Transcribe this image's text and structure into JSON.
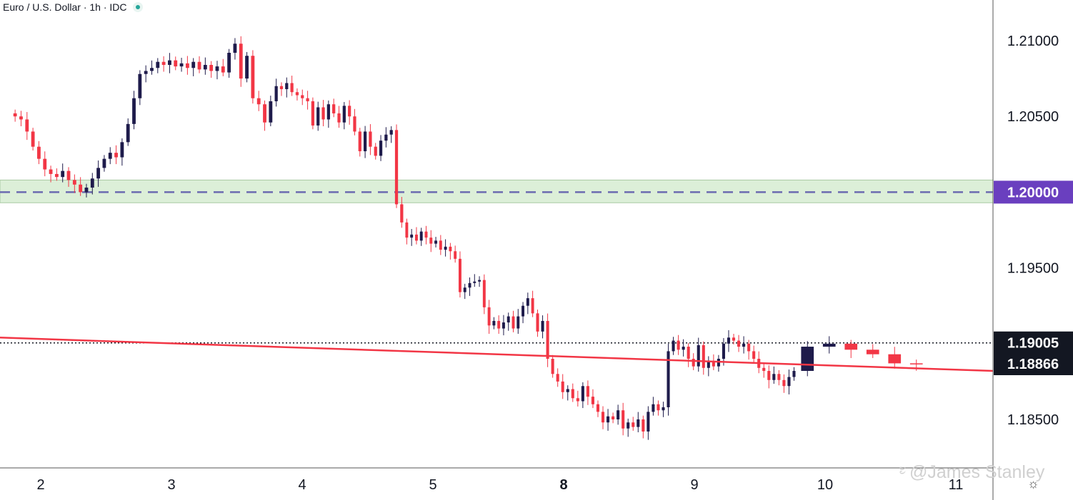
{
  "legend": {
    "title": "Euro / U.S. Dollar · 1h · IDC"
  },
  "watermark": {
    "text": "@James Stanley"
  },
  "colors": {
    "up": "#1e1b4b",
    "down": "#f23645",
    "trendline": "#f23645",
    "zone": "#dcefd8",
    "dashed_level": "#6b6bb0",
    "price_label_primary": "#131722",
    "highlight_label": "#6a3fbf"
  },
  "chart_data": {
    "type": "candlestick",
    "title": "Euro / U.S. Dollar · 1h · IDC",
    "x_tick_labels": [
      "2",
      "3",
      "4",
      "5",
      "8",
      "9",
      "10",
      "11"
    ],
    "y_tick_labels": [
      "1.21000",
      "1.20500",
      "1.19500",
      "1.18500"
    ],
    "ylim": [
      1.182,
      1.2125
    ],
    "grid": false,
    "levels": [
      {
        "label": "1.20000",
        "value": 1.2,
        "style": "dashed",
        "zone": [
          1.1993,
          1.2008
        ]
      },
      {
        "label": "1.19005",
        "value": 1.19005,
        "style": "dotted"
      },
      {
        "label": "1.18866",
        "value": 1.18866,
        "style": "current"
      }
    ],
    "trendline": {
      "start_value": 1.1904,
      "end_value": 1.1882
    },
    "segments": [
      {
        "label": "2",
        "points": [
          1.205,
          1.2048,
          1.204,
          1.203,
          1.2022,
          1.2015,
          1.2012,
          1.201,
          1.2014,
          1.2008,
          1.2005,
          1.2,
          1.2003,
          1.2009,
          1.2016,
          1.2022,
          1.2026,
          1.2023,
          1.2033,
          1.2045,
          1.2062,
          1.2078
        ]
      },
      {
        "label": "3",
        "points": [
          1.208,
          1.2082,
          1.2086,
          1.2084,
          1.2087,
          1.2083,
          1.2085,
          1.2082,
          1.2086,
          1.2081,
          1.2084,
          1.208,
          1.2083,
          1.2079,
          1.2092,
          1.2098,
          1.2075,
          1.209,
          1.2062,
          1.2058,
          1.2046,
          1.206
        ]
      },
      {
        "label": "4",
        "points": [
          1.207,
          1.2068,
          1.2072,
          1.2066,
          1.2064,
          1.2062,
          1.206,
          1.2044,
          1.2056,
          1.2048,
          1.2058,
          1.2052,
          1.2046,
          1.2057,
          1.205,
          1.204,
          1.2027,
          1.204,
          1.203,
          1.2024,
          1.2034,
          1.2038,
          1.2041,
          1.1992,
          1.198
        ]
      },
      {
        "label": "5",
        "points": [
          1.197,
          1.1972,
          1.1968,
          1.1974,
          1.197,
          1.1966,
          1.1968,
          1.1962,
          1.1964,
          1.1961,
          1.1956,
          1.1934,
          1.1937,
          1.194,
          1.1941,
          1.1942,
          1.1924,
          1.1912,
          1.1915,
          1.191,
          1.1914,
          1.1918,
          1.191,
          1.1918,
          1.1925,
          1.193,
          1.192
        ]
      },
      {
        "label": "8",
        "points": [
          1.1908,
          1.1915,
          1.189,
          1.188,
          1.1875,
          1.1868,
          1.187,
          1.1864,
          1.1862,
          1.1872,
          1.1865,
          1.186,
          1.1855,
          1.1848,
          1.1852,
          1.185,
          1.1856,
          1.1844,
          1.1848,
          1.1845,
          1.185,
          1.1842,
          1.1855,
          1.186,
          1.1856,
          1.1858
        ]
      },
      {
        "label": "9",
        "points": [
          1.1895,
          1.1902,
          1.1896,
          1.1898,
          1.189,
          1.1885,
          1.1899,
          1.1884,
          1.1888,
          1.1885,
          1.189,
          1.19,
          1.1904,
          1.1902,
          1.1898,
          1.19,
          1.1895,
          1.189,
          1.1884,
          1.1882,
          1.1876,
          1.188,
          1.1876,
          1.1872,
          1.1878,
          1.1882
        ]
      },
      {
        "label": "10",
        "points": [
          1.1898,
          1.19,
          1.1896,
          1.1893,
          1.1887,
          1.18866
        ]
      }
    ]
  }
}
